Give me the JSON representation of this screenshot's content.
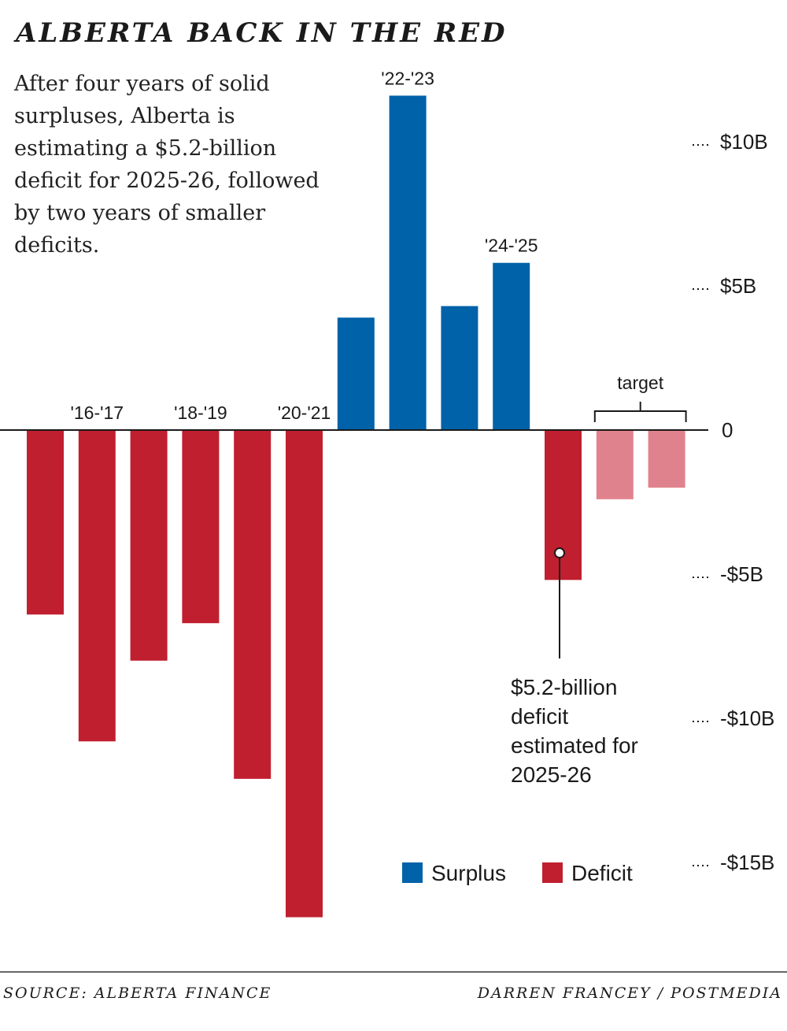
{
  "header": {
    "title": "ALBERTA BACK IN THE RED",
    "intro": "After four years of solid surpluses, Alberta is estimating a $5.2-billion deficit for 2025-26, followed by two years of smaller deficits."
  },
  "footer": {
    "source": "SOURCE: ALBERTA FINANCE",
    "credit": "DARREN FRANCEY / POSTMEDIA"
  },
  "colors": {
    "surplus": "#0062a8",
    "deficit": "#c01f2f",
    "target": "#e0828d",
    "axis": "#1a1a1a"
  },
  "chart_data": {
    "type": "bar",
    "title": "ALBERTA BACK IN THE RED",
    "unit": "billions of dollars",
    "categories": [
      "2015-16",
      "2016-17",
      "2017-18",
      "2018-19",
      "2019-20",
      "2020-21",
      "2021-22",
      "2022-23",
      "2023-24",
      "2024-25",
      "2025-26",
      "2026-27",
      "2027-28"
    ],
    "values": [
      -6.4,
      -10.8,
      -8.0,
      -6.7,
      -12.1,
      -16.9,
      3.9,
      11.6,
      4.3,
      5.8,
      -5.2,
      -2.4,
      -2.0
    ],
    "kinds": [
      "deficit",
      "deficit",
      "deficit",
      "deficit",
      "deficit",
      "deficit",
      "surplus",
      "surplus",
      "surplus",
      "surplus",
      "deficit",
      "target",
      "target"
    ],
    "bar_labels": [
      {
        "index": 1,
        "text": "'16-'17"
      },
      {
        "index": 3,
        "text": "'18-'19"
      },
      {
        "index": 5,
        "text": "'20-'21"
      },
      {
        "index": 7,
        "text": "'22-'23"
      },
      {
        "index": 9,
        "text": "'24-'25"
      }
    ],
    "yticks": [
      {
        "value": 10,
        "label": "$10B"
      },
      {
        "value": 5,
        "label": "$5B"
      },
      {
        "value": 0,
        "label": "0"
      },
      {
        "value": -5,
        "label": "-$5B"
      },
      {
        "value": -10,
        "label": "-$10B"
      },
      {
        "value": -15,
        "label": "-$15B"
      }
    ],
    "ylim": [
      -17,
      12
    ],
    "target_bracket": {
      "label": "target",
      "from_index": 11,
      "to_index": 12
    },
    "annotation": {
      "index": 10,
      "lines": [
        "$5.2-billion",
        "deficit",
        "estimated for",
        "2025-26"
      ]
    },
    "legend": [
      {
        "name": "Surplus",
        "kind": "surplus"
      },
      {
        "name": "Deficit",
        "kind": "deficit"
      }
    ]
  }
}
